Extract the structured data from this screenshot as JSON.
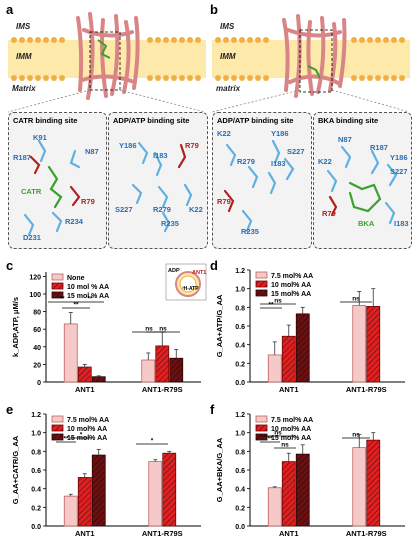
{
  "panels": {
    "a": {
      "letter": "a",
      "membrane": {
        "ims": "IMS",
        "imm": "IMM",
        "matrix": "Matrix"
      },
      "sites": [
        {
          "title": "CATR binding site",
          "residues": [
            {
              "name": "K91",
              "color": "blue"
            },
            {
              "name": "R187",
              "color": "blue"
            },
            {
              "name": "N87",
              "color": "blue"
            },
            {
              "name": "CATR",
              "color": "green"
            },
            {
              "name": "R79",
              "color": "red"
            },
            {
              "name": "R234",
              "color": "blue"
            },
            {
              "name": "D231",
              "color": "blue"
            }
          ]
        },
        {
          "title": "ADP/ATP binding site",
          "residues": [
            {
              "name": "Y186",
              "color": "blue"
            },
            {
              "name": "I183",
              "color": "blue"
            },
            {
              "name": "R79",
              "color": "red"
            },
            {
              "name": "S227",
              "color": "blue"
            },
            {
              "name": "R279",
              "color": "blue"
            },
            {
              "name": "K22",
              "color": "blue"
            },
            {
              "name": "R235",
              "color": "blue"
            }
          ]
        }
      ]
    },
    "b": {
      "letter": "b",
      "membrane": {
        "ims": "IMS",
        "imm": "IMM",
        "matrix": "matrix"
      },
      "sites": [
        {
          "title": "ADP/ATP binding site",
          "residues": [
            {
              "name": "K22",
              "color": "blue"
            },
            {
              "name": "Y186",
              "color": "blue"
            },
            {
              "name": "S227",
              "color": "blue"
            },
            {
              "name": "R279",
              "color": "blue"
            },
            {
              "name": "I183",
              "color": "blue"
            },
            {
              "name": "R79",
              "color": "red"
            },
            {
              "name": "R235",
              "color": "blue"
            }
          ]
        },
        {
          "title": "BKA binding site",
          "residues": [
            {
              "name": "N87",
              "color": "blue"
            },
            {
              "name": "R187",
              "color": "blue"
            },
            {
              "name": "K22",
              "color": "blue"
            },
            {
              "name": "Y186",
              "color": "blue"
            },
            {
              "name": "S227",
              "color": "blue"
            },
            {
              "name": "R79",
              "color": "red"
            },
            {
              "name": "BKA",
              "color": "green"
            },
            {
              "name": "I183",
              "color": "blue"
            }
          ]
        }
      ]
    },
    "c": {
      "letter": "c",
      "inset": {
        "adp": "ADP",
        "ant": "ANT1",
        "atp": "³H-ATP"
      }
    },
    "d": {
      "letter": "d"
    },
    "e": {
      "letter": "e"
    },
    "f": {
      "letter": "f"
    }
  },
  "colors": {
    "bar1_fill": "#f6c9c9",
    "bar2_fill": "#e02020",
    "bar3_fill": "#6b1010",
    "membrane": "#fde9a9",
    "protein": "#d98585"
  },
  "chart_data": [
    {
      "type": "bar",
      "panel": "c",
      "categories": [
        "ANT1",
        "ANT1-R79S"
      ],
      "series": [
        {
          "name": "None",
          "values": [
            66,
            25
          ],
          "errors": [
            13,
            8
          ]
        },
        {
          "name": "10 mol % AA",
          "values": [
            17,
            41
          ],
          "errors": [
            3,
            16
          ]
        },
        {
          "name": "15 mol % AA",
          "values": [
            6,
            27
          ],
          "errors": [
            1,
            10
          ]
        }
      ],
      "ylabel": "k_ADP,ATP, μM/s",
      "ylim": [
        0,
        125
      ],
      "yticks": [
        0,
        20,
        40,
        60,
        80,
        100,
        120
      ],
      "annotations": [
        "**",
        "**",
        "**",
        "ns",
        "ns"
      ]
    },
    {
      "type": "bar",
      "panel": "d",
      "categories": [
        "ANT1",
        "ANT1-R79S"
      ],
      "series": [
        {
          "name": "7.5 mol% AA",
          "values": [
            0.29,
            0.82
          ],
          "errors": [
            0.14,
            0.15
          ]
        },
        {
          "name": "10 mol% AA",
          "values": [
            0.49,
            0.81
          ],
          "errors": [
            0.12,
            0.19
          ]
        },
        {
          "name": "15 mol% AA",
          "values": [
            0.73,
            null
          ],
          "errors": [
            0.07,
            null
          ]
        }
      ],
      "ylabel": "G_AA+ATP/G_AA",
      "ylim": [
        0,
        1.2
      ],
      "yticks": [
        0.0,
        0.2,
        0.4,
        0.6,
        0.8,
        1.0,
        1.2
      ],
      "annotations": [
        "**",
        "ns",
        "ns"
      ]
    },
    {
      "type": "bar",
      "panel": "e",
      "categories": [
        "ANT1",
        "ANT1-R79S"
      ],
      "series": [
        {
          "name": "7.5 mol% AA",
          "values": [
            0.32,
            0.69
          ],
          "errors": [
            0.02,
            0.02
          ]
        },
        {
          "name": "10 mol% AA",
          "values": [
            0.52,
            0.78
          ],
          "errors": [
            0.04,
            0.02
          ]
        },
        {
          "name": "15 mol% AA",
          "values": [
            0.76,
            null
          ],
          "errors": [
            0.06,
            null
          ]
        }
      ],
      "ylabel": "G_AA+CATR/G_AA",
      "ylim": [
        0,
        1.2
      ],
      "yticks": [
        0.0,
        0.2,
        0.4,
        0.6,
        0.8,
        1.0,
        1.2
      ],
      "annotations": [
        "**",
        "*",
        "*"
      ]
    },
    {
      "type": "bar",
      "panel": "f",
      "categories": [
        "ANT1",
        "ANT1-R79S"
      ],
      "series": [
        {
          "name": "7.5 mol% AA",
          "values": [
            0.41,
            0.84
          ],
          "errors": [
            0.01,
            0.14
          ]
        },
        {
          "name": "10 mol% AA",
          "values": [
            0.69,
            0.92
          ],
          "errors": [
            0.09,
            0.08
          ]
        },
        {
          "name": "15 mol% AA",
          "values": [
            0.77,
            null
          ],
          "errors": [
            0.1,
            null
          ]
        }
      ],
      "ylabel": "G_AA+BKA/G_AA",
      "ylim": [
        0,
        1.2
      ],
      "yticks": [
        0.0,
        0.2,
        0.4,
        0.6,
        0.8,
        1.0,
        1.2
      ],
      "annotations": [
        "**",
        "ns",
        "ns",
        "ns"
      ]
    }
  ]
}
